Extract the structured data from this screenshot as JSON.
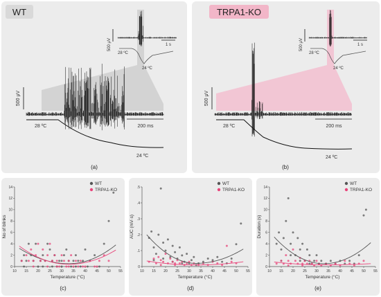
{
  "colors": {
    "panel_bg": "#ececec",
    "wt": "#555555",
    "ko": "#e8457a",
    "wt_fill": "#d3d3d3",
    "ko_fill": "#f2c6d4",
    "trace": "#111111"
  },
  "top": {
    "a": {
      "group_label": "WT",
      "inset_scale_v": "500 μV",
      "inset_scale_t": "1 s",
      "inset_temp_start": "28 ºC",
      "inset_temp_end": "24 ºC",
      "main_scale_v": "500 μV",
      "main_scale_t": "200 ms",
      "main_temp_start": "28 ºC",
      "main_temp_end": "24 ºC",
      "caption": "(a)"
    },
    "b": {
      "group_label": "TRPA1-KO",
      "inset_scale_v": "500 μV",
      "inset_scale_t": "1 s",
      "inset_temp_start": "28 ºC",
      "inset_temp_end": "24 ºC",
      "main_scale_v": "500 μV",
      "main_scale_t": "200 ms",
      "main_temp_start": "28 ºC",
      "main_temp_end": "24 ºC",
      "caption": "(b)"
    }
  },
  "chart_data": [
    {
      "type": "scatter",
      "panel": "c",
      "caption": "(c)",
      "xlabel": "Temperature (°C)",
      "ylabel": "No of blinks",
      "xlim": [
        10,
        55
      ],
      "ylim": [
        0,
        14
      ],
      "xticks": [
        "10",
        "15",
        "20",
        "25",
        "30",
        "35",
        "40",
        "45",
        "50",
        "55"
      ],
      "yticks": [
        "0",
        "2",
        "4",
        "6",
        "8",
        "10",
        "12",
        "14"
      ],
      "legend": [
        "WT",
        "TRPA1-KO"
      ],
      "legend_position": "top-right",
      "fit": "quadratic",
      "series": [
        {
          "name": "WT",
          "points": [
            [
              13,
              1
            ],
            [
              14,
              2
            ],
            [
              15,
              1
            ],
            [
              16,
              4
            ],
            [
              17,
              2
            ],
            [
              18,
              1
            ],
            [
              19,
              4
            ],
            [
              20,
              0
            ],
            [
              21,
              1
            ],
            [
              22,
              2
            ],
            [
              23,
              1
            ],
            [
              24,
              4
            ],
            [
              25,
              3
            ],
            [
              26,
              1
            ],
            [
              27,
              2
            ],
            [
              28,
              0
            ],
            [
              29,
              1
            ],
            [
              30,
              1
            ],
            [
              31,
              2
            ],
            [
              32,
              3
            ],
            [
              33,
              1
            ],
            [
              34,
              0
            ],
            [
              35,
              1
            ],
            [
              36,
              2
            ],
            [
              37,
              1
            ],
            [
              38,
              0
            ],
            [
              39,
              1
            ],
            [
              40,
              3
            ],
            [
              42,
              1
            ],
            [
              44,
              2
            ],
            [
              46,
              0
            ],
            [
              48,
              4
            ],
            [
              50,
              8
            ],
            [
              52,
              13
            ],
            [
              14,
              0
            ],
            [
              22,
              0
            ],
            [
              26,
              0
            ],
            [
              30,
              0
            ],
            [
              36,
              0
            ],
            [
              41,
              0
            ]
          ]
        },
        {
          "name": "TRPA1-KO",
          "points": [
            [
              13,
              1
            ],
            [
              15,
              2
            ],
            [
              16,
              1
            ],
            [
              17,
              3
            ],
            [
              18,
              1
            ],
            [
              19,
              2
            ],
            [
              20,
              4
            ],
            [
              21,
              1
            ],
            [
              22,
              3
            ],
            [
              23,
              1
            ],
            [
              24,
              2
            ],
            [
              25,
              4
            ],
            [
              26,
              1
            ],
            [
              27,
              2
            ],
            [
              28,
              1
            ],
            [
              29,
              0
            ],
            [
              30,
              2
            ],
            [
              31,
              1
            ],
            [
              32,
              0
            ],
            [
              33,
              1
            ],
            [
              34,
              2
            ],
            [
              35,
              0
            ],
            [
              36,
              1
            ],
            [
              37,
              0
            ],
            [
              38,
              1
            ],
            [
              39,
              0
            ],
            [
              40,
              0
            ],
            [
              42,
              1
            ],
            [
              44,
              0
            ],
            [
              46,
              1
            ],
            [
              48,
              2
            ],
            [
              50,
              1
            ],
            [
              18,
              0
            ],
            [
              24,
              0
            ],
            [
              28,
              0
            ],
            [
              33,
              0
            ],
            [
              45,
              0
            ]
          ]
        }
      ],
      "fits": {
        "WT": [
          3.2,
          0.5,
          3.8
        ],
        "TRPA1-KO": [
          3.6,
          0.4,
          2.9
        ]
      }
    },
    {
      "type": "scatter",
      "panel": "d",
      "caption": "(d)",
      "xlabel": "Temperature (°C)",
      "ylabel": "AUC (mV·s)",
      "xlim": [
        10,
        55
      ],
      "ylim": [
        0,
        0.5
      ],
      "xticks": [
        "10",
        "15",
        "20",
        "25",
        "30",
        "35",
        "40",
        "45",
        "50",
        "55"
      ],
      "yticks": [
        "0",
        ".1",
        ".2",
        ".3",
        ".4",
        ".5"
      ],
      "legend": [
        "WT",
        "TRPA1-KO"
      ],
      "legend_position": "top-right",
      "fit": "quadratic",
      "series": [
        {
          "name": "WT",
          "points": [
            [
              13,
              0.18
            ],
            [
              14,
              0.22
            ],
            [
              15,
              0.12
            ],
            [
              16,
              0.08
            ],
            [
              17,
              0.2
            ],
            [
              18,
              0.49
            ],
            [
              19,
              0.15
            ],
            [
              20,
              0.1
            ],
            [
              21,
              0.17
            ],
            [
              22,
              0.06
            ],
            [
              23,
              0.13
            ],
            [
              24,
              0.09
            ],
            [
              25,
              0.05
            ],
            [
              26,
              0.12
            ],
            [
              27,
              0.07
            ],
            [
              28,
              0.03
            ],
            [
              29,
              0.08
            ],
            [
              30,
              0.02
            ],
            [
              31,
              0.04
            ],
            [
              32,
              0.06
            ],
            [
              34,
              0.02
            ],
            [
              36,
              0.03
            ],
            [
              38,
              0.05
            ],
            [
              40,
              0.04
            ],
            [
              42,
              0.06
            ],
            [
              44,
              0.03
            ],
            [
              46,
              0.02
            ],
            [
              48,
              0.05
            ],
            [
              50,
              0.14
            ],
            [
              52,
              0.27
            ],
            [
              15,
              0.04
            ],
            [
              19,
              0.05
            ],
            [
              23,
              0.03
            ],
            [
              27,
              0.02
            ],
            [
              33,
              0.01
            ]
          ]
        },
        {
          "name": "TRPA1-KO",
          "points": [
            [
              13,
              0.03
            ],
            [
              15,
              0.05
            ],
            [
              16,
              0.02
            ],
            [
              17,
              0.06
            ],
            [
              18,
              0.04
            ],
            [
              19,
              0.03
            ],
            [
              20,
              0.08
            ],
            [
              21,
              0.02
            ],
            [
              22,
              0.05
            ],
            [
              23,
              0.03
            ],
            [
              24,
              0.01
            ],
            [
              25,
              0.04
            ],
            [
              26,
              0.02
            ],
            [
              27,
              0.03
            ],
            [
              28,
              0.01
            ],
            [
              29,
              0.02
            ],
            [
              30,
              0.03
            ],
            [
              31,
              0.01
            ],
            [
              32,
              0.02
            ],
            [
              34,
              0.01
            ],
            [
              36,
              0.02
            ],
            [
              38,
              0.01
            ],
            [
              40,
              0.03
            ],
            [
              42,
              0.02
            ],
            [
              44,
              0.01
            ],
            [
              46,
              0.13
            ],
            [
              48,
              0.03
            ],
            [
              50,
              0.02
            ],
            [
              18,
              0.01
            ],
            [
              24,
              0.02
            ]
          ]
        }
      ],
      "fits": {
        "WT": [
          0.2,
          0.02,
          0.11
        ],
        "TRPA1-KO": [
          0.035,
          0.01,
          0.03
        ]
      }
    },
    {
      "type": "scatter",
      "panel": "e",
      "caption": "(e)",
      "xlabel": "Temperature (°C)",
      "ylabel": "Duration (s)",
      "xlim": [
        10,
        55
      ],
      "ylim": [
        0,
        14
      ],
      "xticks": [
        "10",
        "15",
        "20",
        "25",
        "30",
        "35",
        "40",
        "45",
        "50",
        "55"
      ],
      "yticks": [
        "0",
        "2",
        "4",
        "6",
        "8",
        "10",
        "12",
        "14"
      ],
      "legend": [
        "WT",
        "TRPA1-KO"
      ],
      "legend_position": "top-right",
      "fit": "quadratic",
      "series": [
        {
          "name": "WT",
          "points": [
            [
              13,
              4
            ],
            [
              14,
              6
            ],
            [
              15,
              3
            ],
            [
              16,
              5
            ],
            [
              17,
              8
            ],
            [
              18,
              12
            ],
            [
              19,
              4
            ],
            [
              20,
              6
            ],
            [
              21,
              2
            ],
            [
              22,
              5
            ],
            [
              23,
              3
            ],
            [
              24,
              4
            ],
            [
              25,
              1
            ],
            [
              26,
              3
            ],
            [
              27,
              2
            ],
            [
              28,
              0.5
            ],
            [
              29,
              1
            ],
            [
              30,
              2
            ],
            [
              31,
              0.5
            ],
            [
              32,
              1
            ],
            [
              34,
              0.5
            ],
            [
              36,
              1
            ],
            [
              38,
              0.5
            ],
            [
              40,
              1
            ],
            [
              42,
              0.5
            ],
            [
              44,
              1
            ],
            [
              46,
              0.5
            ],
            [
              48,
              2
            ],
            [
              50,
              9
            ],
            [
              51,
              10
            ],
            [
              15,
              1
            ],
            [
              19,
              2
            ],
            [
              23,
              1
            ],
            [
              27,
              0.5
            ]
          ]
        },
        {
          "name": "TRPA1-KO",
          "points": [
            [
              13,
              0.5
            ],
            [
              15,
              1
            ],
            [
              16,
              0.5
            ],
            [
              17,
              2
            ],
            [
              18,
              1
            ],
            [
              19,
              0.5
            ],
            [
              20,
              3
            ],
            [
              21,
              1
            ],
            [
              22,
              0.5
            ],
            [
              23,
              1.5
            ],
            [
              24,
              0.5
            ],
            [
              25,
              1
            ],
            [
              26,
              0.5
            ],
            [
              27,
              1
            ],
            [
              28,
              0.5
            ],
            [
              29,
              0.2
            ],
            [
              30,
              1
            ],
            [
              31,
              0.5
            ],
            [
              32,
              0.2
            ],
            [
              34,
              0.5
            ],
            [
              36,
              0.2
            ],
            [
              38,
              0.5
            ],
            [
              40,
              0.2
            ],
            [
              42,
              1
            ],
            [
              44,
              0.5
            ],
            [
              46,
              0.2
            ],
            [
              48,
              0.5
            ],
            [
              50,
              1
            ],
            [
              18,
              0.2
            ],
            [
              24,
              0.2
            ]
          ]
        }
      ],
      "fits": {
        "WT": [
          5.2,
          0.5,
          4.2
        ],
        "TRPA1-KO": [
          0.8,
          0.3,
          0.5
        ]
      }
    }
  ]
}
